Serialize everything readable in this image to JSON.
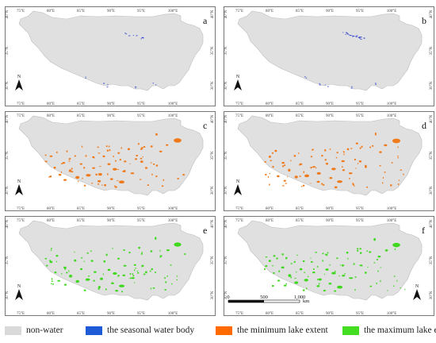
{
  "panels": [
    {
      "label": "a",
      "water_type": "seasonal"
    },
    {
      "label": "b",
      "water_type": "seasonal"
    },
    {
      "label": "c",
      "water_type": "minimum"
    },
    {
      "label": "d",
      "water_type": "minimum"
    },
    {
      "label": "e",
      "water_type": "maximum"
    },
    {
      "label": "f",
      "water_type": "maximum"
    }
  ],
  "axes": {
    "lon_ticks": [
      "75°E",
      "80°E",
      "85°E",
      "90°E",
      "95°E",
      "100°E"
    ],
    "lat_ticks": [
      "40°N",
      "35°N",
      "30°N"
    ]
  },
  "north_arrow": {
    "label": "N"
  },
  "scale_bar": {
    "ticks": [
      "0",
      "500",
      "1,000"
    ],
    "unit": "km"
  },
  "legend": [
    {
      "label": "non-water",
      "color": "#d9d9d9"
    },
    {
      "label": "the seasonal water body",
      "color": "#1f5bd6"
    },
    {
      "label": "the minimum lake extent",
      "color": "#ff6a00"
    },
    {
      "label": "the maximum lake extent",
      "color": "#44dd22"
    }
  ],
  "colors": {
    "plateau": "#e0e0e0",
    "plateau_edge": "#bdbdbd",
    "seasonal": "#2a3fd0",
    "minimum": "#f07a1a",
    "maximum": "#3fd81f",
    "frame": "#555555"
  }
}
